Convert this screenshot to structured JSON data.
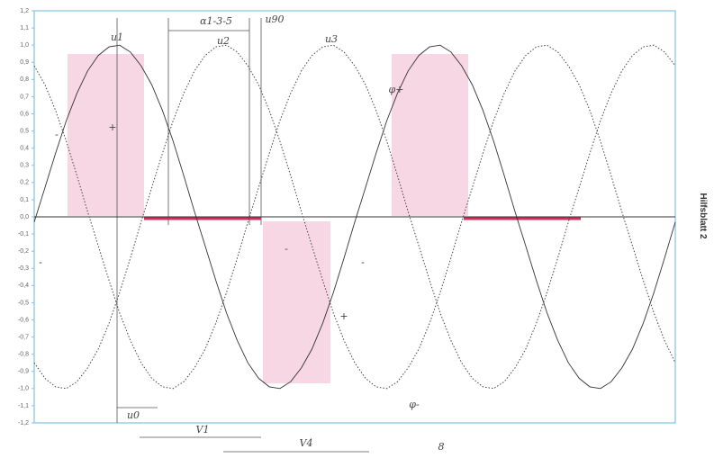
{
  "chart_data": {
    "type": "line",
    "side_label": "Hilfsblatt 2",
    "categories": [
      null,
      null,
      null,
      null,
      null,
      null,
      null,
      null,
      null,
      null,
      null,
      null,
      null,
      null,
      null,
      null,
      null,
      null,
      null,
      null,
      null,
      null,
      null,
      null,
      null,
      null,
      null,
      null,
      null,
      null,
      null,
      null,
      null,
      null,
      null,
      null,
      null,
      null,
      null,
      null,
      null,
      null,
      null,
      null,
      null,
      null,
      null,
      null,
      null,
      null,
      null,
      null,
      null,
      null,
      null,
      null,
      null,
      null,
      null,
      null,
      null
    ],
    "series": [
      {
        "name": "u1",
        "color": "#333333",
        "style": "solid",
        "values": [
          -0.03,
          0.17,
          0.37,
          0.56,
          0.72,
          0.85,
          0.94,
          0.99,
          1.0,
          0.96,
          0.88,
          0.77,
          0.62,
          0.44,
          0.24,
          0.03,
          -0.17,
          -0.37,
          -0.56,
          -0.72,
          -0.85,
          -0.94,
          -0.99,
          -1.0,
          -0.96,
          -0.88,
          -0.77,
          -0.62,
          -0.44,
          -0.24,
          -0.03,
          0.17,
          0.37,
          0.56,
          0.72,
          0.85,
          0.94,
          0.99,
          1.0,
          0.96,
          0.88,
          0.77,
          0.62,
          0.44,
          0.24,
          0.03,
          -0.17,
          -0.37,
          -0.56,
          -0.72,
          -0.85,
          -0.94,
          -0.99,
          -1.0,
          -0.96,
          -0.88,
          -0.77,
          -0.62,
          -0.44,
          -0.24,
          -0.03
        ]
      },
      {
        "name": "u2",
        "color": "#444444",
        "style": "dotted",
        "values": [
          -0.85,
          -0.94,
          -0.99,
          -1.0,
          -0.96,
          -0.88,
          -0.77,
          -0.62,
          -0.44,
          -0.24,
          -0.03,
          0.17,
          0.37,
          0.56,
          0.72,
          0.85,
          0.94,
          0.99,
          1.0,
          0.96,
          0.88,
          0.77,
          0.62,
          0.44,
          0.24,
          0.03,
          -0.17,
          -0.37,
          -0.56,
          -0.72,
          -0.85,
          -0.94,
          -0.99,
          -1.0,
          -0.96,
          -0.88,
          -0.77,
          -0.62,
          -0.44,
          -0.24,
          -0.03,
          0.17,
          0.37,
          0.56,
          0.72,
          0.85,
          0.94,
          0.99,
          1.0,
          0.96,
          0.88,
          0.77,
          0.62,
          0.44,
          0.24,
          0.03,
          -0.17,
          -0.37,
          -0.56,
          -0.72,
          -0.85
        ]
      },
      {
        "name": "u3",
        "color": "#444444",
        "style": "dotted",
        "values": [
          0.88,
          0.77,
          0.62,
          0.44,
          0.24,
          0.03,
          -0.17,
          -0.37,
          -0.56,
          -0.72,
          -0.85,
          -0.94,
          -0.99,
          -1.0,
          -0.96,
          -0.88,
          -0.77,
          -0.62,
          -0.44,
          -0.24,
          -0.03,
          0.17,
          0.37,
          0.56,
          0.72,
          0.85,
          0.94,
          0.99,
          1.0,
          0.96,
          0.88,
          0.77,
          0.62,
          0.44,
          0.24,
          0.03,
          -0.17,
          -0.37,
          -0.56,
          -0.72,
          -0.85,
          -0.94,
          -0.99,
          -1.0,
          -0.96,
          -0.88,
          -0.77,
          -0.62,
          -0.44,
          -0.24,
          -0.03,
          0.17,
          0.37,
          0.56,
          0.72,
          0.85,
          0.94,
          0.99,
          1.0,
          0.96,
          0.88
        ]
      }
    ],
    "ylim": [
      -1.2,
      1.2
    ],
    "yticks": [
      {
        "value": 1.2,
        "label": "1,2"
      },
      {
        "value": 1.1,
        "label": "1,1"
      },
      {
        "value": 1.0,
        "label": "1,0"
      },
      {
        "value": 0.9,
        "label": "0,9"
      },
      {
        "value": 0.8,
        "label": "0,8"
      },
      {
        "value": 0.7,
        "label": "0,7"
      },
      {
        "value": 0.6,
        "label": "0,6"
      },
      {
        "value": 0.5,
        "label": "0,5"
      },
      {
        "value": 0.4,
        "label": "0,4"
      },
      {
        "value": 0.3,
        "label": "0,3"
      },
      {
        "value": 0.2,
        "label": "0,2"
      },
      {
        "value": 0.1,
        "label": "0,1"
      },
      {
        "value": 0,
        "label": "0,0"
      },
      {
        "value": -0.1,
        "label": "-0,1"
      },
      {
        "value": -0.2,
        "label": "-0,2"
      },
      {
        "value": -0.3,
        "label": "-0,3"
      },
      {
        "value": -0.4,
        "label": "-0,4"
      },
      {
        "value": -0.5,
        "label": "-0,5"
      },
      {
        "value": -0.6,
        "label": "-0,6"
      },
      {
        "value": -0.7,
        "label": "-0,7"
      },
      {
        "value": -0.8,
        "label": "-0,8"
      },
      {
        "value": -0.9,
        "label": "-0,9"
      },
      {
        "value": -1.0,
        "label": "-1,0"
      },
      {
        "value": -1.1,
        "label": "-1,1"
      },
      {
        "value": -1.2,
        "label": "-1,2"
      }
    ],
    "annotations": [
      "u1",
      "u2",
      "u3",
      "α1-3-5",
      "u90",
      "u0",
      "V1",
      "V4",
      "φ+",
      "φ-",
      "+",
      "-",
      "+",
      "-",
      "-",
      "-",
      "8"
    ]
  }
}
